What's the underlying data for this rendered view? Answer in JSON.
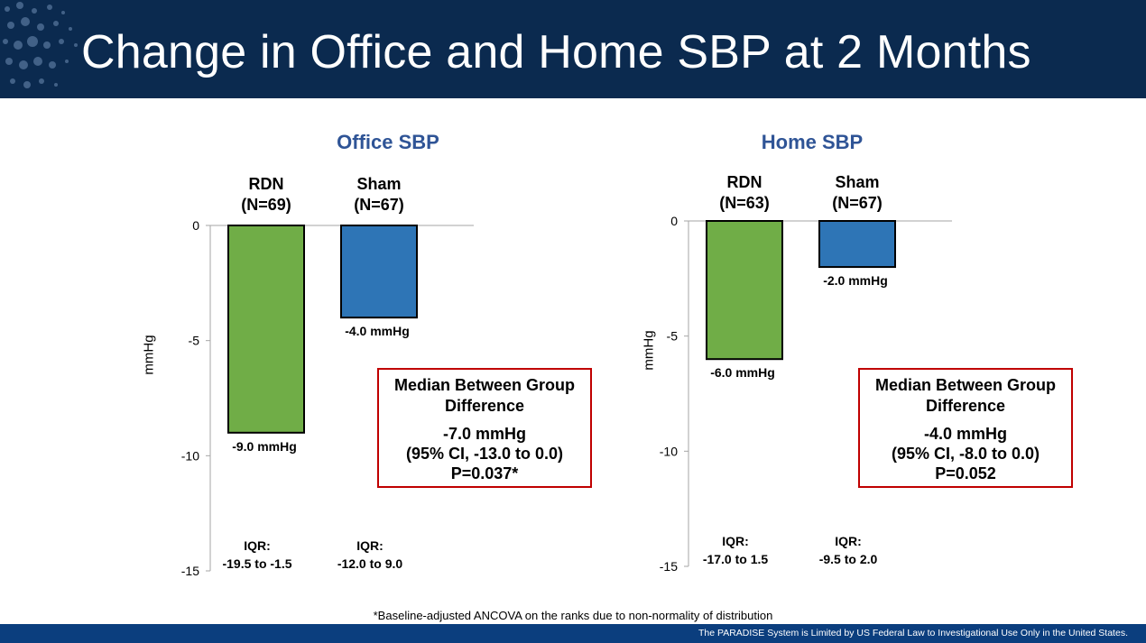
{
  "title": "Change in Office and Home SBP at 2 Months",
  "footnote": "*Baseline-adjusted ANCOVA on the ranks due to non-normality of distribution",
  "footer": "The PARADISE System is Limited by US Federal Law to Investigational Use Only in the United States.",
  "colors": {
    "header_bg": "#0b2a4f",
    "footer_bg": "#0b3e7e",
    "rdn": "#70ad47",
    "sham": "#2e75b6",
    "title_blue": "#2f5496",
    "box_border": "#c00000"
  },
  "chart_data": [
    {
      "type": "bar",
      "title": "Office SBP",
      "ylabel": "mmHg",
      "ylim": [
        -15,
        0
      ],
      "yticks": [
        "0",
        "-5",
        "-10",
        "-15"
      ],
      "categories": [
        {
          "name": "RDN",
          "n": "(N=69)",
          "value": -9.0,
          "label": "-9.0 mmHg",
          "iqr_title": "IQR:",
          "iqr": "-19.5 to -1.5",
          "color": "#70ad47"
        },
        {
          "name": "Sham",
          "n": "(N=67)",
          "value": -4.0,
          "label": "-4.0 mmHg",
          "iqr_title": "IQR:",
          "iqr": "-12.0 to 9.0",
          "color": "#2e75b6"
        }
      ],
      "difference": {
        "title": "Median Between Group Difference",
        "value": "-7.0 mmHg",
        "ci": "(95% CI, -13.0 to 0.0)",
        "p": "P=0.037*"
      }
    },
    {
      "type": "bar",
      "title": "Home SBP",
      "ylabel": "mmHg",
      "ylim": [
        -15,
        0
      ],
      "yticks": [
        "0",
        "-5",
        "-10",
        "-15"
      ],
      "categories": [
        {
          "name": "RDN",
          "n": "(N=63)",
          "value": -6.0,
          "label": "-6.0 mmHg",
          "iqr_title": "IQR:",
          "iqr": "-17.0 to 1.5",
          "color": "#70ad47"
        },
        {
          "name": "Sham",
          "n": "(N=67)",
          "value": -2.0,
          "label": "-2.0 mmHg",
          "iqr_title": "IQR:",
          "iqr": "-9.5 to 2.0",
          "color": "#2e75b6"
        }
      ],
      "difference": {
        "title": "Median Between Group Difference",
        "value": "-4.0 mmHg",
        "ci": "(95% CI, -8.0 to 0.0)",
        "p": "P=0.052"
      }
    }
  ]
}
